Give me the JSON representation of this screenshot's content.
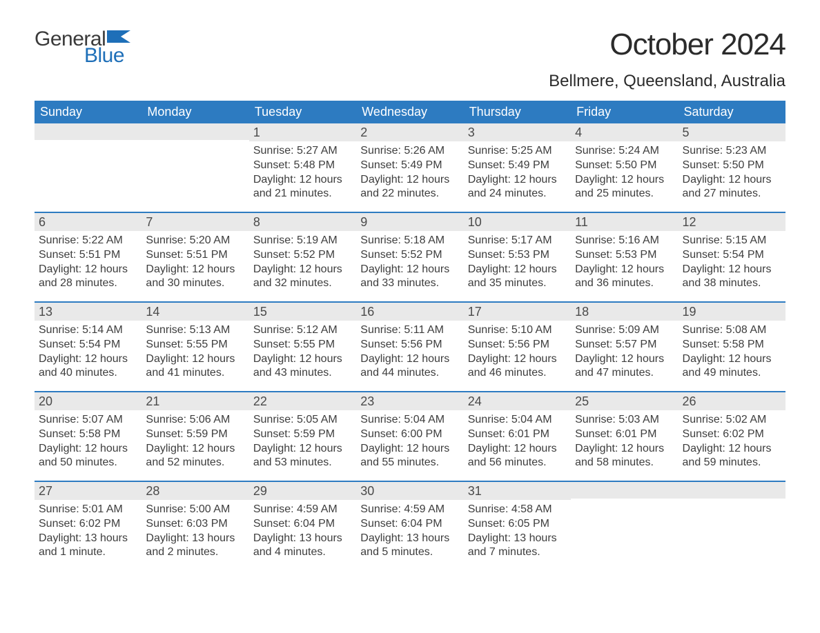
{
  "brand": {
    "text_general": "General",
    "text_blue": "Blue",
    "flag_color": "#1e6fb8"
  },
  "title": {
    "month_year": "October 2024",
    "location": "Bellmere, Queensland, Australia"
  },
  "colors": {
    "header_bg": "#2d7bc1",
    "header_text": "#ffffff",
    "week_divider": "#2d7bc1",
    "daynum_bg": "#e9e9e9",
    "body_text": "#3d3d3d",
    "page_bg": "#ffffff"
  },
  "typography": {
    "title_fontsize": 44,
    "location_fontsize": 24,
    "dayhead_fontsize": 18,
    "daynum_fontsize": 18,
    "body_fontsize": 16
  },
  "day_headers": [
    "Sunday",
    "Monday",
    "Tuesday",
    "Wednesday",
    "Thursday",
    "Friday",
    "Saturday"
  ],
  "weeks": [
    [
      null,
      null,
      {
        "n": "1",
        "sunrise": "Sunrise: 5:27 AM",
        "sunset": "Sunset: 5:48 PM",
        "daylight": "Daylight: 12 hours and 21 minutes."
      },
      {
        "n": "2",
        "sunrise": "Sunrise: 5:26 AM",
        "sunset": "Sunset: 5:49 PM",
        "daylight": "Daylight: 12 hours and 22 minutes."
      },
      {
        "n": "3",
        "sunrise": "Sunrise: 5:25 AM",
        "sunset": "Sunset: 5:49 PM",
        "daylight": "Daylight: 12 hours and 24 minutes."
      },
      {
        "n": "4",
        "sunrise": "Sunrise: 5:24 AM",
        "sunset": "Sunset: 5:50 PM",
        "daylight": "Daylight: 12 hours and 25 minutes."
      },
      {
        "n": "5",
        "sunrise": "Sunrise: 5:23 AM",
        "sunset": "Sunset: 5:50 PM",
        "daylight": "Daylight: 12 hours and 27 minutes."
      }
    ],
    [
      {
        "n": "6",
        "sunrise": "Sunrise: 5:22 AM",
        "sunset": "Sunset: 5:51 PM",
        "daylight": "Daylight: 12 hours and 28 minutes."
      },
      {
        "n": "7",
        "sunrise": "Sunrise: 5:20 AM",
        "sunset": "Sunset: 5:51 PM",
        "daylight": "Daylight: 12 hours and 30 minutes."
      },
      {
        "n": "8",
        "sunrise": "Sunrise: 5:19 AM",
        "sunset": "Sunset: 5:52 PM",
        "daylight": "Daylight: 12 hours and 32 minutes."
      },
      {
        "n": "9",
        "sunrise": "Sunrise: 5:18 AM",
        "sunset": "Sunset: 5:52 PM",
        "daylight": "Daylight: 12 hours and 33 minutes."
      },
      {
        "n": "10",
        "sunrise": "Sunrise: 5:17 AM",
        "sunset": "Sunset: 5:53 PM",
        "daylight": "Daylight: 12 hours and 35 minutes."
      },
      {
        "n": "11",
        "sunrise": "Sunrise: 5:16 AM",
        "sunset": "Sunset: 5:53 PM",
        "daylight": "Daylight: 12 hours and 36 minutes."
      },
      {
        "n": "12",
        "sunrise": "Sunrise: 5:15 AM",
        "sunset": "Sunset: 5:54 PM",
        "daylight": "Daylight: 12 hours and 38 minutes."
      }
    ],
    [
      {
        "n": "13",
        "sunrise": "Sunrise: 5:14 AM",
        "sunset": "Sunset: 5:54 PM",
        "daylight": "Daylight: 12 hours and 40 minutes."
      },
      {
        "n": "14",
        "sunrise": "Sunrise: 5:13 AM",
        "sunset": "Sunset: 5:55 PM",
        "daylight": "Daylight: 12 hours and 41 minutes."
      },
      {
        "n": "15",
        "sunrise": "Sunrise: 5:12 AM",
        "sunset": "Sunset: 5:55 PM",
        "daylight": "Daylight: 12 hours and 43 minutes."
      },
      {
        "n": "16",
        "sunrise": "Sunrise: 5:11 AM",
        "sunset": "Sunset: 5:56 PM",
        "daylight": "Daylight: 12 hours and 44 minutes."
      },
      {
        "n": "17",
        "sunrise": "Sunrise: 5:10 AM",
        "sunset": "Sunset: 5:56 PM",
        "daylight": "Daylight: 12 hours and 46 minutes."
      },
      {
        "n": "18",
        "sunrise": "Sunrise: 5:09 AM",
        "sunset": "Sunset: 5:57 PM",
        "daylight": "Daylight: 12 hours and 47 minutes."
      },
      {
        "n": "19",
        "sunrise": "Sunrise: 5:08 AM",
        "sunset": "Sunset: 5:58 PM",
        "daylight": "Daylight: 12 hours and 49 minutes."
      }
    ],
    [
      {
        "n": "20",
        "sunrise": "Sunrise: 5:07 AM",
        "sunset": "Sunset: 5:58 PM",
        "daylight": "Daylight: 12 hours and 50 minutes."
      },
      {
        "n": "21",
        "sunrise": "Sunrise: 5:06 AM",
        "sunset": "Sunset: 5:59 PM",
        "daylight": "Daylight: 12 hours and 52 minutes."
      },
      {
        "n": "22",
        "sunrise": "Sunrise: 5:05 AM",
        "sunset": "Sunset: 5:59 PM",
        "daylight": "Daylight: 12 hours and 53 minutes."
      },
      {
        "n": "23",
        "sunrise": "Sunrise: 5:04 AM",
        "sunset": "Sunset: 6:00 PM",
        "daylight": "Daylight: 12 hours and 55 minutes."
      },
      {
        "n": "24",
        "sunrise": "Sunrise: 5:04 AM",
        "sunset": "Sunset: 6:01 PM",
        "daylight": "Daylight: 12 hours and 56 minutes."
      },
      {
        "n": "25",
        "sunrise": "Sunrise: 5:03 AM",
        "sunset": "Sunset: 6:01 PM",
        "daylight": "Daylight: 12 hours and 58 minutes."
      },
      {
        "n": "26",
        "sunrise": "Sunrise: 5:02 AM",
        "sunset": "Sunset: 6:02 PM",
        "daylight": "Daylight: 12 hours and 59 minutes."
      }
    ],
    [
      {
        "n": "27",
        "sunrise": "Sunrise: 5:01 AM",
        "sunset": "Sunset: 6:02 PM",
        "daylight": "Daylight: 13 hours and 1 minute."
      },
      {
        "n": "28",
        "sunrise": "Sunrise: 5:00 AM",
        "sunset": "Sunset: 6:03 PM",
        "daylight": "Daylight: 13 hours and 2 minutes."
      },
      {
        "n": "29",
        "sunrise": "Sunrise: 4:59 AM",
        "sunset": "Sunset: 6:04 PM",
        "daylight": "Daylight: 13 hours and 4 minutes."
      },
      {
        "n": "30",
        "sunrise": "Sunrise: 4:59 AM",
        "sunset": "Sunset: 6:04 PM",
        "daylight": "Daylight: 13 hours and 5 minutes."
      },
      {
        "n": "31",
        "sunrise": "Sunrise: 4:58 AM",
        "sunset": "Sunset: 6:05 PM",
        "daylight": "Daylight: 13 hours and 7 minutes."
      },
      null,
      null
    ]
  ]
}
